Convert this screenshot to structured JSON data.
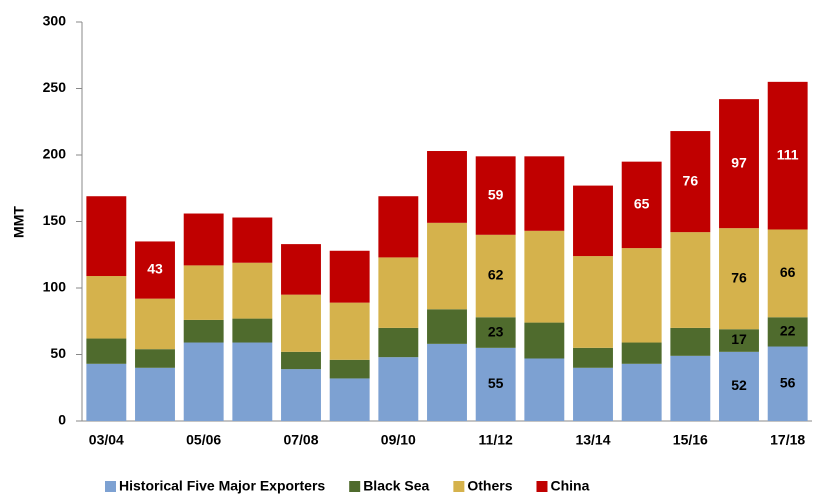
{
  "chart_data": {
    "type": "stacked_bar",
    "y_label": "MMT",
    "categories": [
      "03/04",
      null,
      "05/06",
      null,
      "07/08",
      null,
      "09/10",
      null,
      "11/12",
      null,
      "13/14",
      null,
      "15/16",
      null,
      "17/18"
    ],
    "series": [
      {
        "name": "Historical Five Major Exporters",
        "color": "#7da1d2",
        "values": [
          43,
          40,
          59,
          59,
          39,
          32,
          48,
          58,
          55,
          47,
          40,
          43,
          49,
          52,
          56
        ],
        "value_labels": [
          null,
          null,
          null,
          null,
          null,
          null,
          null,
          null,
          "55",
          null,
          null,
          null,
          null,
          "52",
          "56"
        ]
      },
      {
        "name": "Black Sea",
        "color": "#4f6b2d",
        "values": [
          19,
          14,
          17,
          18,
          13,
          14,
          22,
          26,
          23,
          27,
          15,
          16,
          21,
          17,
          22
        ],
        "value_labels": [
          null,
          null,
          null,
          null,
          null,
          null,
          null,
          null,
          "23",
          null,
          null,
          null,
          null,
          "17",
          "22"
        ]
      },
      {
        "name": "Others",
        "color": "#d5b24c",
        "values": [
          47,
          38,
          41,
          42,
          43,
          43,
          53,
          65,
          62,
          69,
          69,
          71,
          72,
          76,
          66
        ],
        "value_labels": [
          null,
          null,
          null,
          null,
          null,
          null,
          null,
          null,
          "62",
          null,
          null,
          null,
          null,
          "76",
          "66"
        ]
      },
      {
        "name": "China",
        "color": "#c00000",
        "values": [
          60,
          43,
          39,
          34,
          38,
          39,
          46,
          54,
          59,
          56,
          53,
          65,
          76,
          97,
          111
        ],
        "value_labels": [
          null,
          "43",
          null,
          null,
          null,
          null,
          null,
          null,
          "59",
          null,
          null,
          "65",
          "76",
          "97",
          "111"
        ]
      }
    ],
    "ylim": [
      0,
      300
    ],
    "yticks": [
      0,
      50,
      100,
      150,
      200,
      250,
      300
    ],
    "legend": "bottom"
  }
}
